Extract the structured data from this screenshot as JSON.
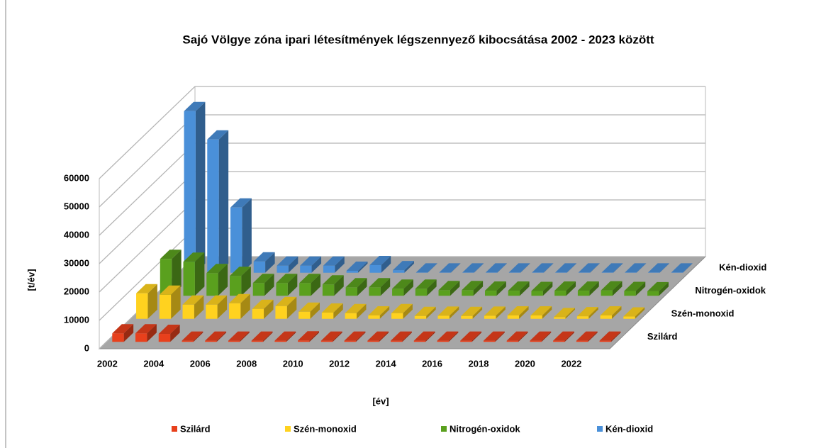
{
  "chart_data": {
    "type": "bar3d",
    "title": "Sajó Völgye zóna ipari létesítmények légszennyező kibocsátása 2002 - 2023 között",
    "x_label": "[év]",
    "y_label": "[t/év]",
    "categories": [
      "2002",
      null,
      "2004",
      null,
      "2006",
      null,
      "2008",
      null,
      "2010",
      null,
      "2012",
      null,
      "2014",
      null,
      "2016",
      null,
      "2018",
      null,
      "2020",
      null,
      "2022",
      null
    ],
    "series": [
      {
        "name": "Szilárd",
        "color": "#e8401c",
        "values": [
          3000,
          3000,
          2800,
          400,
          400,
          400,
          400,
          400,
          500,
          400,
          400,
          400,
          400,
          400,
          400,
          400,
          400,
          400,
          400,
          400,
          400,
          400
        ]
      },
      {
        "name": "Szén-monoxid",
        "color": "#ffd21f",
        "values": [
          9000,
          8500,
          5000,
          5000,
          5500,
          3500,
          4500,
          2500,
          2200,
          2000,
          1200,
          2000,
          1000,
          1100,
          1000,
          1100,
          1200,
          1200,
          600,
          900,
          1200,
          800
        ]
      },
      {
        "name": "Nitrogén-oxidok",
        "color": "#5aa01e",
        "values": [
          13000,
          12000,
          8000,
          7000,
          4500,
          4500,
          4500,
          4000,
          3000,
          3000,
          2500,
          2500,
          2000,
          2000,
          1800,
          1800,
          1700,
          1800,
          1800,
          1900,
          1700,
          1600
        ]
      },
      {
        "name": "Kén-dioxid",
        "color": "#4a90d9",
        "values": [
          57000,
          47000,
          23000,
          4000,
          2500,
          2500,
          2500,
          700,
          2700,
          900,
          100,
          100,
          100,
          100,
          100,
          100,
          100,
          100,
          100,
          100,
          100,
          100
        ]
      }
    ],
    "ylim": [
      0,
      60000
    ],
    "yticks": [
      0,
      10000,
      20000,
      30000,
      40000,
      50000,
      60000
    ],
    "grid": true,
    "legend": "bottom"
  }
}
